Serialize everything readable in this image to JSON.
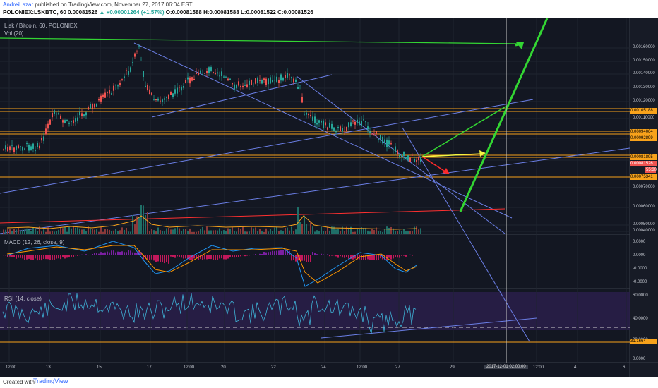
{
  "header": {
    "author": "AndreiLazar",
    "published": " published on TradingView.com, November 27, 2017 06:04 EST",
    "symbol_line": "POLONIEX:LSKBTC, 60 0.00081526",
    "change": " ▲ +0.00001264 (+1.57%)",
    "ohlc": " O:0.00081588 H:0.00081588 L:0.00081522 C:0.00081526"
  },
  "legends": {
    "main": "Lisk / Bitcoin, 60, POLONIEX",
    "vol": "Vol (20)",
    "macd": "MACD (12, 26, close, 9)",
    "rsi": "RSI (14, close)"
  },
  "price_axis": [
    "0.00160000",
    "0.00150000",
    "0.00140000",
    "0.00130000",
    "0.00120000",
    "0.00110000",
    "0.00100000",
    "0.00090000",
    "0.00070000",
    "0.00060000",
    "0.00050000",
    "0.00040000"
  ],
  "price_tags": {
    "tag_1": "0.00105188",
    "tag_2": "0.00094064",
    "tag_3": "0.00092899",
    "tag_4": "0.00081895",
    "tag_5": "0.00081526",
    "tag_6": "55:30",
    "tag_7": "0.00075341"
  },
  "macd_axis": [
    "0.0000",
    "0.0000",
    "-0.0000",
    "-0.0000"
  ],
  "rsi_axis": [
    "60.0000",
    "40.0000",
    "20.0000",
    "0.0000"
  ],
  "rsi_tag": "31.1664",
  "dates": [
    "12:00",
    "13",
    "15",
    "17",
    "12:00",
    "20",
    "22",
    "24",
    "12:00",
    "27",
    "29",
    "12:00",
    "4",
    "6"
  ],
  "crosshair_date": "2017-12-01 02:00:00",
  "footer": {
    "created": "Created with",
    "brand": "TradingView"
  },
  "colors": {
    "background": "#131722",
    "up": "#26a69a",
    "down": "#ef5350",
    "orange": "#f7a21b",
    "blue": "#5b6fd6",
    "green": "#33d633",
    "yellow": "#f5f542",
    "red": "#ff2a2a"
  }
}
